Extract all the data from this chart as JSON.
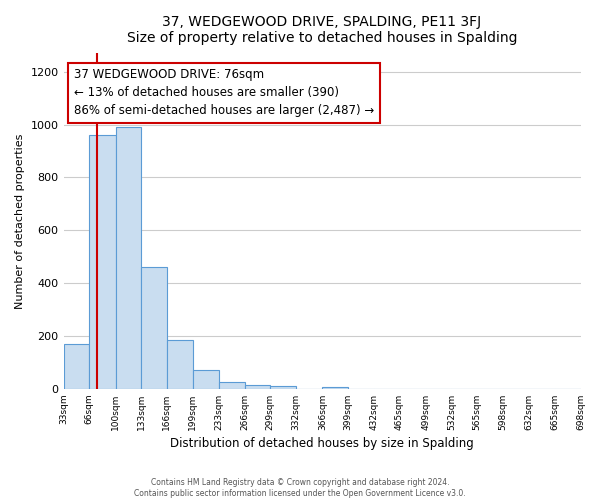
{
  "title": "37, WEDGEWOOD DRIVE, SPALDING, PE11 3FJ",
  "subtitle": "Size of property relative to detached houses in Spalding",
  "xlabel": "Distribution of detached houses by size in Spalding",
  "ylabel": "Number of detached properties",
  "bar_edges": [
    33,
    66,
    100,
    133,
    166,
    199,
    233,
    266,
    299,
    332,
    366,
    399,
    432,
    465,
    499,
    532,
    565,
    598,
    632,
    665,
    698
  ],
  "bar_heights": [
    170,
    960,
    990,
    460,
    185,
    70,
    25,
    15,
    12,
    0,
    8,
    0,
    0,
    0,
    0,
    0,
    0,
    0,
    0,
    0
  ],
  "bar_color": "#c9ddf0",
  "bar_edge_color": "#5b9bd5",
  "property_line_x": 76,
  "property_line_color": "#cc0000",
  "annotation_line1": "37 WEDGEWOOD DRIVE: 76sqm",
  "annotation_line2": "← 13% of detached houses are smaller (390)",
  "annotation_line3": "86% of semi-detached houses are larger (2,487) →",
  "annotation_box_color": "#cc0000",
  "annotation_text_fontsize": 8.5,
  "ylim": [
    0,
    1270
  ],
  "yticks": [
    0,
    200,
    400,
    600,
    800,
    1000,
    1200
  ],
  "background_color": "#ffffff",
  "plot_bg_color": "#ffffff",
  "grid_color": "#cccccc",
  "footer_line1": "Contains HM Land Registry data © Crown copyright and database right 2024.",
  "footer_line2": "Contains public sector information licensed under the Open Government Licence v3.0.",
  "tick_labels": [
    "33sqm",
    "66sqm",
    "100sqm",
    "133sqm",
    "166sqm",
    "199sqm",
    "233sqm",
    "266sqm",
    "299sqm",
    "332sqm",
    "366sqm",
    "399sqm",
    "432sqm",
    "465sqm",
    "499sqm",
    "532sqm",
    "565sqm",
    "598sqm",
    "632sqm",
    "665sqm",
    "698sqm"
  ]
}
